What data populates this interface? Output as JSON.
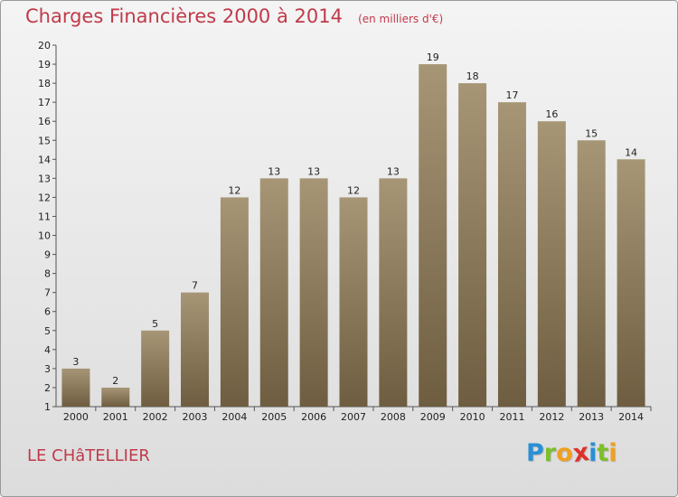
{
  "chart_data": {
    "type": "bar",
    "title": "Charges Financières 2000 à 2014",
    "subtitle": "(en milliers d'€)",
    "categories": [
      "2000",
      "2001",
      "2002",
      "2003",
      "2004",
      "2005",
      "2006",
      "2007",
      "2008",
      "2009",
      "2010",
      "2011",
      "2012",
      "2013",
      "2014"
    ],
    "values": [
      3,
      2,
      5,
      7,
      12,
      13,
      13,
      12,
      13,
      19,
      18,
      17,
      16,
      15,
      14
    ],
    "ylim": [
      1,
      20
    ],
    "yticks": [
      1,
      2,
      3,
      4,
      5,
      6,
      7,
      8,
      9,
      10,
      11,
      12,
      13,
      14,
      15,
      16,
      17,
      18,
      19,
      20
    ],
    "xlabel": "",
    "ylabel": "",
    "grid": false,
    "bar_color_top": "#a69676",
    "bar_color_bottom": "#6e5d40"
  },
  "footer": {
    "commune": "LE CHâTELLIER",
    "logo_letters": [
      {
        "char": "P",
        "color": "#2b8fd6"
      },
      {
        "char": "r",
        "color": "#7bbf2a"
      },
      {
        "char": "o",
        "color": "#f0a020"
      },
      {
        "char": "x",
        "color": "#e0302a"
      },
      {
        "char": "i",
        "color": "#2b8fd6"
      },
      {
        "char": "t",
        "color": "#7bbf2a"
      },
      {
        "char": "i",
        "color": "#f0a020"
      }
    ]
  }
}
